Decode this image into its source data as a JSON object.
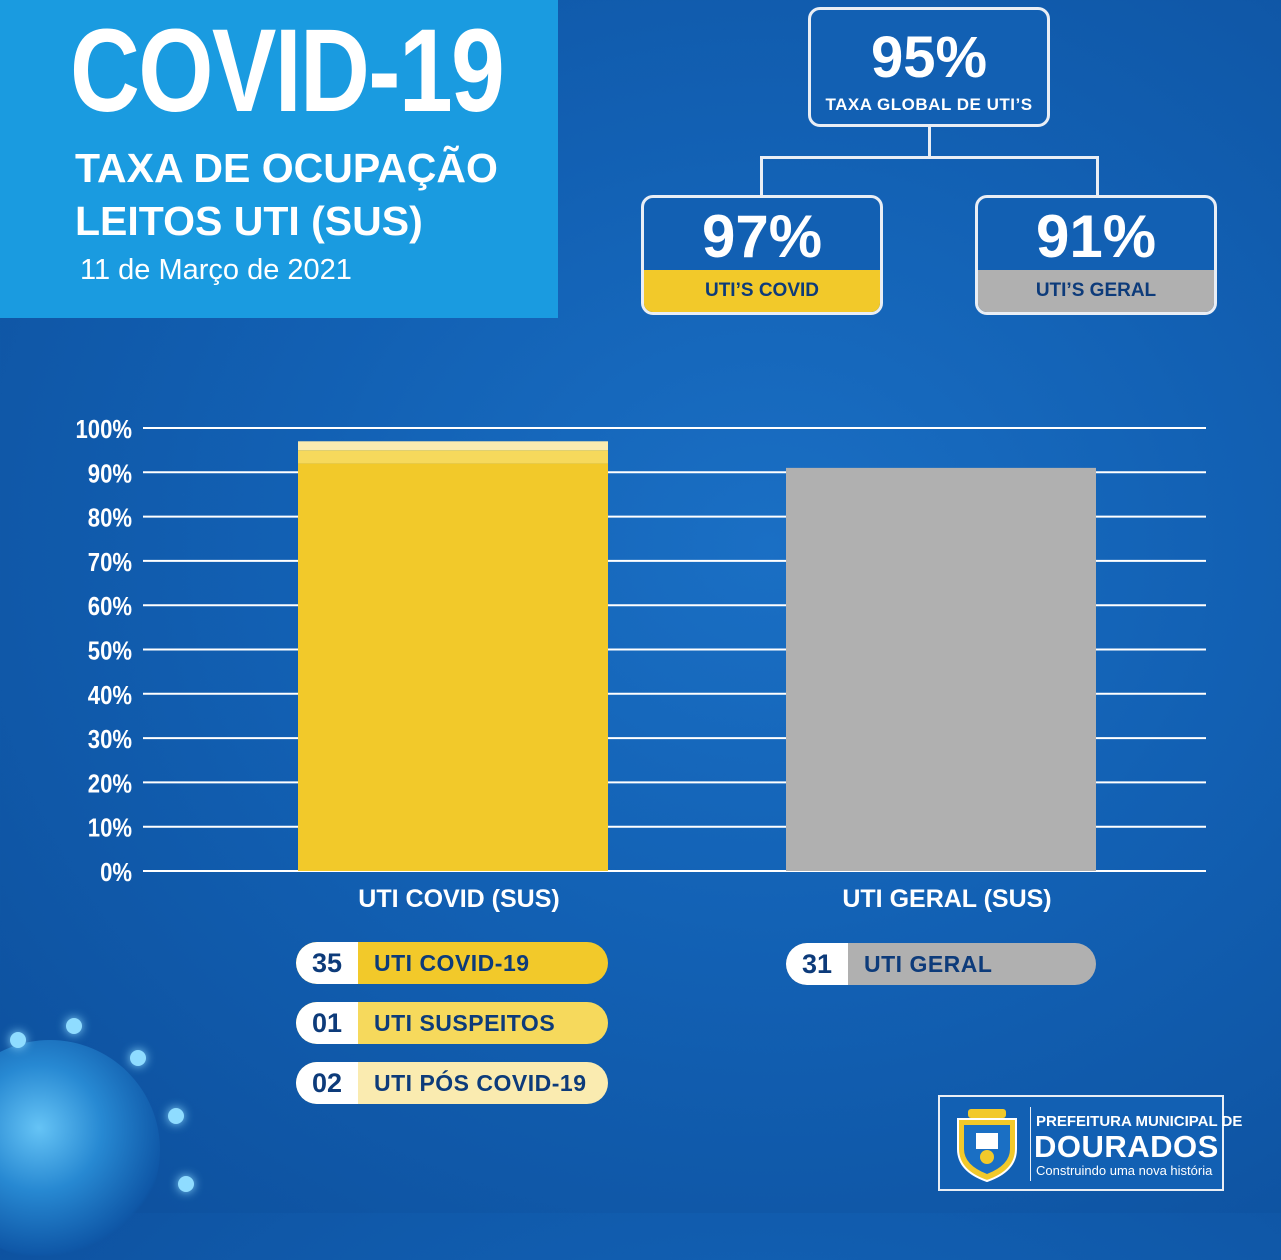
{
  "header": {
    "title": "COVID-19",
    "subtitle_line1": "TAXA DE OCUPAÇÃO",
    "subtitle_line2": "LEITOS UTI (SUS)",
    "date": "11 de Março de 2021"
  },
  "stats": {
    "global": {
      "value": "95%",
      "label": "TAXA GLOBAL DE UTI’S"
    },
    "covid": {
      "value": "97%",
      "label": "UTI’S COVID"
    },
    "geral": {
      "value": "91%",
      "label": "UTI’S GERAL"
    }
  },
  "colors": {
    "background": "#1260b3",
    "title_panel": "#1a9be0",
    "covid_bar": "#f2c92a",
    "covid_bar_light1": "#f6d95c",
    "covid_bar_light2": "#faebb0",
    "geral_bar": "#b0b0b0",
    "gridline": "#ffffff"
  },
  "chart_data": {
    "type": "bar",
    "categories": [
      "UTI COVID (SUS)",
      "UTI GERAL (SUS)"
    ],
    "ylim": [
      0,
      100
    ],
    "yticks": [
      "0%",
      "10%",
      "20%",
      "30%",
      "40%",
      "50%",
      "60%",
      "70%",
      "80%",
      "90%",
      "100%"
    ],
    "grid": true,
    "series": [
      {
        "values": [
          97,
          91
        ]
      }
    ],
    "covid_stack": [
      {
        "label": "UTI COVID-19",
        "value": 92,
        "color": "#f2c92a"
      },
      {
        "label": "UTI SUSPEITOS",
        "value": 3,
        "color": "#f6d95c"
      },
      {
        "label": "UTI PÓS COVID-19",
        "value": 2,
        "color": "#faebb0"
      }
    ]
  },
  "counts": {
    "covid": [
      {
        "num": "35",
        "label": "UTI COVID-19",
        "color": "#f2c92a"
      },
      {
        "num": "01",
        "label": "UTI SUSPEITOS",
        "color": "#f6d95c"
      },
      {
        "num": "02",
        "label": "UTI PÓS COVID-19",
        "color": "#faebb0"
      }
    ],
    "geral": [
      {
        "num": "31",
        "label": "UTI GERAL",
        "color": "#b0b0b0"
      }
    ]
  },
  "logo": {
    "line1": "PREFEITURA MUNICIPAL DE",
    "line2": "DOURADOS",
    "line3": "Construindo uma nova história"
  }
}
